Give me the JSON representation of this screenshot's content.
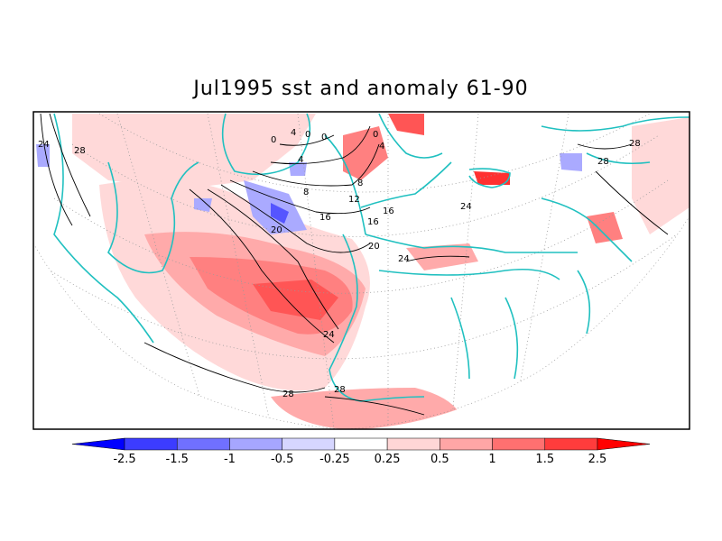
{
  "title": "Jul1995 sst and anomaly 61-90",
  "colors": {
    "coast": "#20c0c0",
    "contour": "#000000",
    "grid": "#9a9a9a",
    "pos_1": "#ffd9d9",
    "pos_2": "#ffaaaa",
    "pos_3": "#ff8080",
    "pos_4": "#ff5555",
    "pos_5": "#ff2a2a",
    "neg_1": "#d9d9ff",
    "neg_2": "#aaaaff",
    "neg_3": "#8080ff",
    "neg_4": "#5555ff",
    "neg_5": "#2a2aff"
  },
  "colorbar": {
    "ticks": [
      "-2.5",
      "-1.5",
      "-1",
      "-0.5",
      "-0.25",
      "0.25",
      "0.5",
      "1",
      "1.5",
      "2.5"
    ],
    "colors": [
      "#0000ff",
      "#3c3cff",
      "#7070ff",
      "#a6a6ff",
      "#d6d6ff",
      "#ffffff",
      "#ffd6d6",
      "#ffa6a6",
      "#ff7070",
      "#ff3c3c",
      "#ff0000"
    ]
  },
  "contour_labels": [
    "24",
    "28",
    "0",
    "4",
    "0",
    "0",
    "4",
    "8",
    "12",
    "8",
    "0",
    "4",
    "16",
    "16",
    "20",
    "16",
    "20",
    "24",
    "24",
    "24",
    "28",
    "28",
    "28",
    "28"
  ]
}
